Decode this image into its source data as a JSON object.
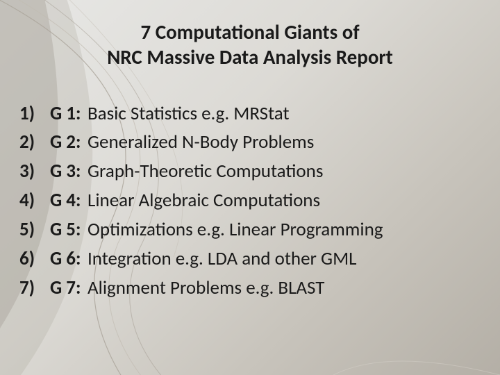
{
  "title": {
    "line1": "7 Computational Giants of",
    "line2": "NRC Massive Data Analysis Report",
    "fontsize": 29,
    "color": "#1a1a1a"
  },
  "list": {
    "fontsize": 27,
    "color": "#1a1a1a",
    "items": [
      {
        "num": "1)",
        "code": "G 1:",
        "desc": "Basic Statistics e.g. MRStat"
      },
      {
        "num": "2)",
        "code": "G 2:",
        "desc": "Generalized N-Body Problems"
      },
      {
        "num": "3)",
        "code": "G 3:",
        "desc": "Graph-Theoretic Computations"
      },
      {
        "num": "4)",
        "code": "G 4:",
        "desc": "Linear Algebraic Computations"
      },
      {
        "num": "5)",
        "code": "G 5:",
        "desc": "Optimizations e.g. Linear Programming"
      },
      {
        "num": "6)",
        "code": "G 6:",
        "desc": "Integration e.g. LDA and other GML"
      },
      {
        "num": "7)",
        "code": "G 7:",
        "desc": "Alignment Problems e.g. BLAST"
      }
    ]
  },
  "background": {
    "gradient_colors": [
      "#e8e8e6",
      "#dcdad5",
      "#c8c4bc",
      "#b4afa6"
    ],
    "curve_stroke": "#aaa49a",
    "curve_stroke_light": "#c2bcb2",
    "curve_fill": "#9c968c"
  }
}
